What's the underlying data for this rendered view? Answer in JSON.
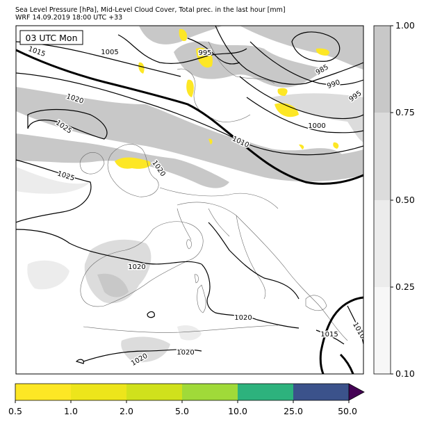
{
  "header": {
    "title": "Sea Level Pressure [hPa], Mid-Level Cloud Cover, Total prec. in the last hour [mm]",
    "subtitle": "WRF 14.09.2019 18:00 UTC +33"
  },
  "map": {
    "time_label": "03 UTC Mon",
    "isobar_labels": [
      "995",
      "1005",
      "1015",
      "1020",
      "1025",
      "1025",
      "1020",
      "985",
      "990",
      "995",
      "1000",
      "1010",
      "1020",
      "1020",
      "1020",
      "1015",
      "1010",
      "1020",
      "1020"
    ]
  },
  "cloud_colorbar": {
    "ticks": [
      "1.00",
      "0.75",
      "0.50",
      "0.25",
      "0.10"
    ],
    "colors": [
      "#c8c8c8",
      "#dcdcdc",
      "#ececec",
      "#f7f7f7"
    ]
  },
  "precip_colorbar": {
    "ticks": [
      "0.5",
      "1.0",
      "2.0",
      "5.0",
      "10.0",
      "25.0",
      "50.0"
    ],
    "colors": [
      "#fde725",
      "#ede51b",
      "#d0e11c",
      "#a0da39",
      "#2db27d",
      "#3b528b",
      "#440154"
    ]
  }
}
